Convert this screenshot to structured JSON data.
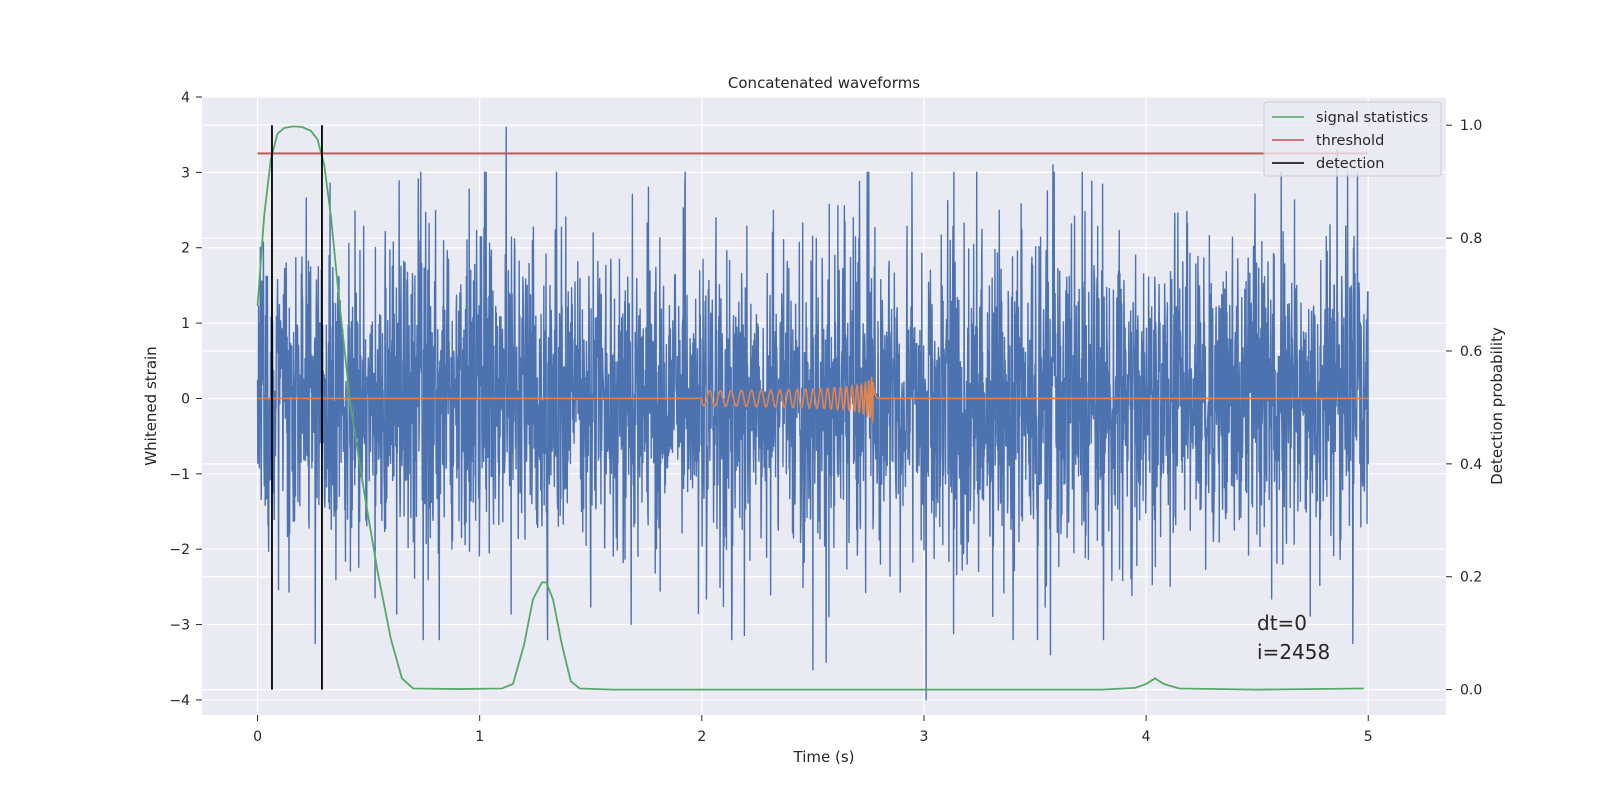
{
  "chart_data": {
    "type": "line",
    "title": "Concatenated waveforms",
    "xlabel": "Time (s)",
    "ylabel": "Whitened strain",
    "y2label": "Detection probability",
    "xlim": [
      -0.25,
      5.35
    ],
    "ylim": [
      -4.2,
      4.0
    ],
    "y2lim": [
      -0.045,
      1.05
    ],
    "xticks": [
      0,
      1,
      2,
      3,
      4,
      5
    ],
    "xtick_labels": [
      "0",
      "1",
      "2",
      "3",
      "4",
      "5"
    ],
    "yticks": [
      -4,
      -3,
      -2,
      -1,
      0,
      1,
      2,
      3,
      4
    ],
    "ytick_labels": [
      "−4",
      "−3",
      "−2",
      "−1",
      "0",
      "1",
      "2",
      "3",
      "4"
    ],
    "y2ticks": [
      0.0,
      0.2,
      0.4,
      0.6,
      0.8,
      1.0
    ],
    "y2tick_labels": [
      "0.0",
      "0.2",
      "0.4",
      "0.6",
      "0.8",
      "1.0"
    ],
    "grid": true,
    "legend_position": "top-right",
    "legend": [
      "signal statistics",
      "threshold",
      "detection"
    ],
    "annotation_lines": [
      "dt=0",
      "i=2458"
    ],
    "colors": {
      "strain": "#4c72b0",
      "injection": "#dd8452",
      "signal_statistics": "#55a868",
      "threshold": "#c44e52",
      "detection": "#000000",
      "background": "#eaeaf2"
    },
    "series": [
      {
        "name": "",
        "axis": "left",
        "description_kind": "whitened strain noise",
        "x_range": [
          0,
          5
        ],
        "typical_amplitude": 1.0,
        "spikes": [
          {
            "x": 1.12,
            "y": 3.6
          },
          {
            "x": 0.26,
            "y": -3.25
          },
          {
            "x": 2.5,
            "y": -3.6
          },
          {
            "x": 2.56,
            "y": -3.5
          },
          {
            "x": 3.01,
            "y": -4.0
          },
          {
            "x": 3.57,
            "y": -3.4
          },
          {
            "x": 3.58,
            "y": 3.1
          },
          {
            "x": 4.86,
            "y": 3.3
          },
          {
            "x": 4.93,
            "y": -3.25
          }
        ]
      },
      {
        "name": "",
        "axis": "left",
        "description_kind": "injected chirp",
        "chirp_start": 2.0,
        "chirp_peak": 2.77,
        "chirp_end": 2.79,
        "start_amplitude": 0.1,
        "peak_amplitude": 0.5
      },
      {
        "name": "signal statistics",
        "axis": "right",
        "x": [
          0.0,
          0.03,
          0.06,
          0.09,
          0.12,
          0.16,
          0.2,
          0.24,
          0.27,
          0.3,
          0.33,
          0.37,
          0.42,
          0.48,
          0.54,
          0.6,
          0.65,
          0.7,
          0.9,
          1.1,
          1.15,
          1.2,
          1.24,
          1.28,
          1.3,
          1.33,
          1.37,
          1.41,
          1.45,
          1.6,
          2.0,
          3.0,
          3.8,
          3.95,
          4.0,
          4.04,
          4.08,
          4.15,
          4.5,
          4.98
        ],
        "y": [
          0.68,
          0.84,
          0.94,
          0.985,
          0.995,
          0.998,
          0.997,
          0.99,
          0.975,
          0.93,
          0.84,
          0.68,
          0.5,
          0.35,
          0.21,
          0.09,
          0.02,
          0.002,
          0.001,
          0.002,
          0.01,
          0.08,
          0.16,
          0.19,
          0.19,
          0.16,
          0.08,
          0.015,
          0.002,
          0.0,
          0.0,
          0.0,
          0.0,
          0.003,
          0.01,
          0.02,
          0.01,
          0.002,
          0.0,
          0.002
        ]
      },
      {
        "name": "threshold",
        "axis": "right",
        "x": [
          0,
          5
        ],
        "y": [
          0.95,
          0.95
        ]
      },
      {
        "name": "detection",
        "axis": "right",
        "vertical_lines_x": [
          0.065,
          0.29
        ],
        "y_range": [
          0.0,
          1.0
        ]
      }
    ]
  }
}
